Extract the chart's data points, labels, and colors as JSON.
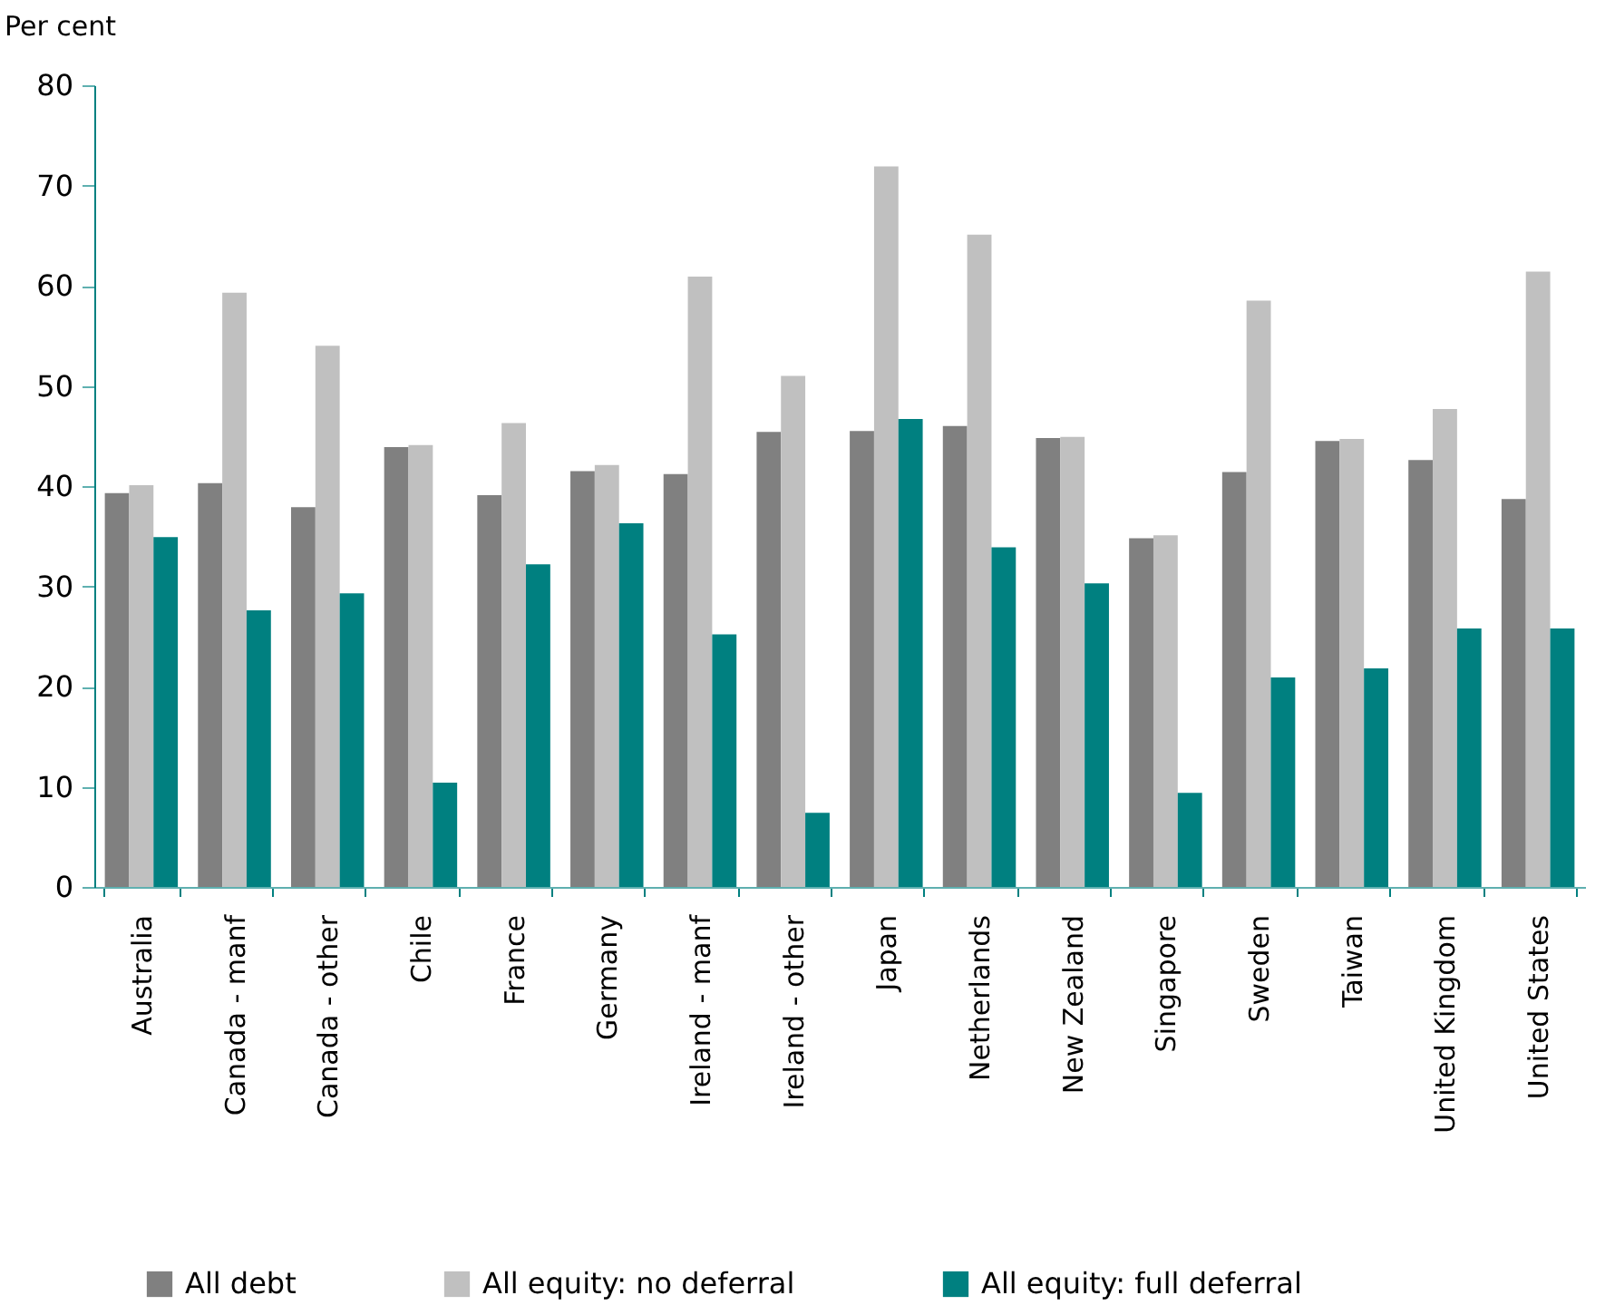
{
  "chart_data": {
    "type": "bar",
    "ylabel": "Per cent",
    "categories": [
      "Australia",
      "Canada - manf",
      "Canada - other",
      "Chile",
      "France",
      "Germany",
      "Ireland - manf",
      "Ireland - other",
      "Japan",
      "Netherlands",
      "New Zealand",
      "Singapore",
      "Sweden",
      "Taiwan",
      "United Kingdom",
      "United States"
    ],
    "series": [
      {
        "name": "All debt",
        "color": "#808080",
        "values": [
          39.3,
          40.3,
          37.9,
          43.9,
          39.1,
          41.5,
          41.2,
          45.4,
          45.5,
          46.0,
          44.8,
          34.8,
          41.4,
          44.5,
          42.6,
          38.7
        ]
      },
      {
        "name": "All equity: no deferral",
        "color": "#c0c0c0",
        "values": [
          40.1,
          59.3,
          54.0,
          44.1,
          46.3,
          42.1,
          60.9,
          51.0,
          71.9,
          65.1,
          44.9,
          35.1,
          58.5,
          44.7,
          47.7,
          61.4
        ]
      },
      {
        "name": "All equity: full deferral",
        "color": "#008080",
        "values": [
          34.9,
          27.6,
          29.3,
          10.4,
          32.2,
          36.3,
          25.2,
          7.4,
          46.7,
          33.9,
          30.3,
          9.4,
          20.9,
          21.8,
          25.8,
          25.8
        ]
      }
    ],
    "ylim": [
      0,
      80
    ],
    "yticks": [
      0,
      10,
      20,
      30,
      40,
      50,
      60,
      70,
      80
    ],
    "grid": false,
    "legend": "bottom"
  }
}
